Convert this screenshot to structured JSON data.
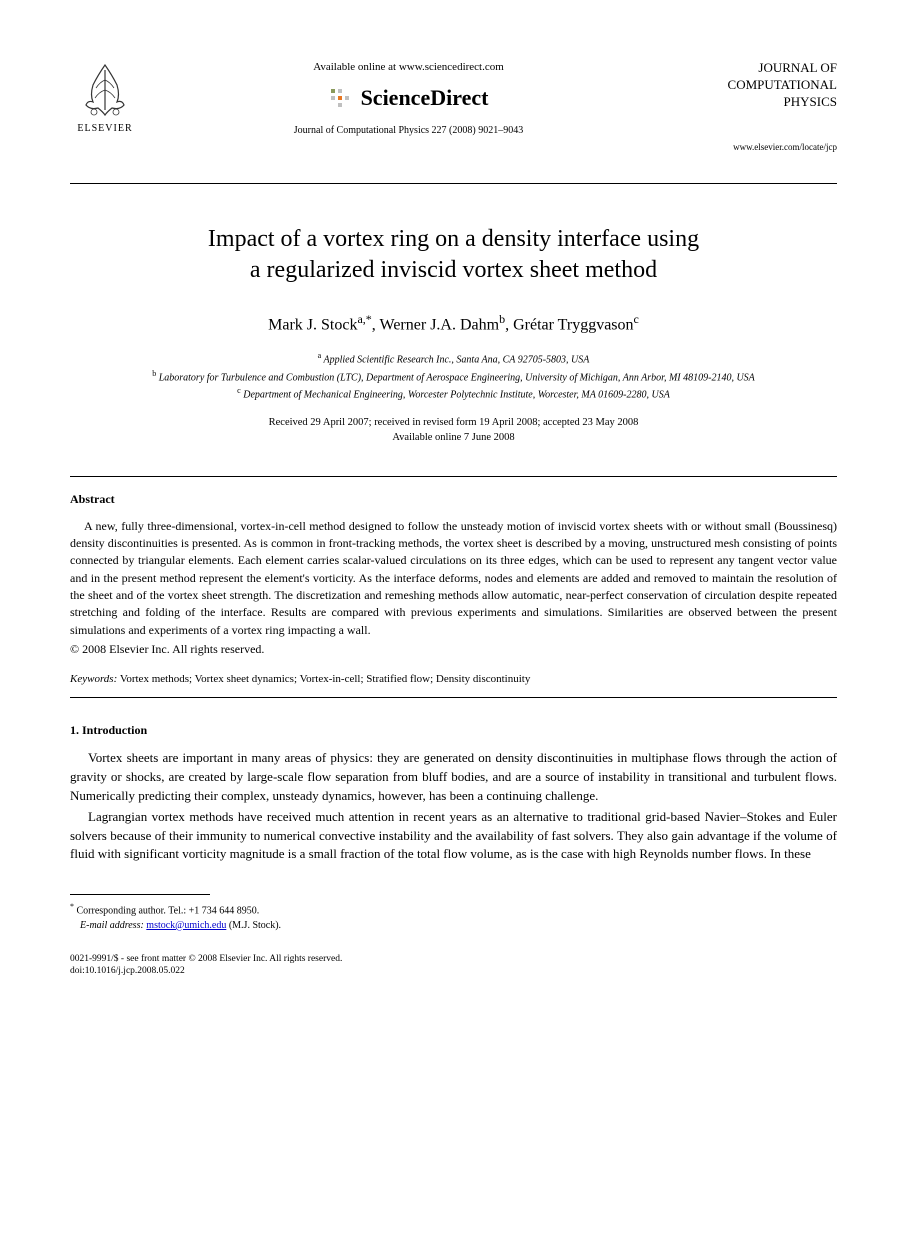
{
  "header": {
    "elsevier_label": "ELSEVIER",
    "available_online": "Available online at www.sciencedirect.com",
    "sciencedirect": "ScienceDirect",
    "journal_reference": "Journal of Computational Physics 227 (2008) 9021–9043",
    "journal_name_line1": "JOURNAL OF",
    "journal_name_line2": "COMPUTATIONAL",
    "journal_name_line3": "PHYSICS",
    "journal_url": "www.elsevier.com/locate/jcp"
  },
  "title_line1": "Impact of a vortex ring on a density interface using",
  "title_line2": "a regularized inviscid vortex sheet method",
  "authors_html": "Mark J. Stock<sup>a,*</sup>, Werner J.A. Dahm<sup>b</sup>, Grétar Tryggvason<sup>c</sup>",
  "affiliations": {
    "a": "Applied Scientific Research Inc., Santa Ana, CA 92705-5803, USA",
    "b": "Laboratory for Turbulence and Combustion (LTC), Department of Aerospace Engineering, University of Michigan, Ann Arbor, MI 48109-2140, USA",
    "c": "Department of Mechanical Engineering, Worcester Polytechnic Institute, Worcester, MA 01609-2280, USA"
  },
  "dates_line1": "Received 29 April 2007; received in revised form 19 April 2008; accepted 23 May 2008",
  "dates_line2": "Available online 7 June 2008",
  "abstract_heading": "Abstract",
  "abstract_text": "A new, fully three-dimensional, vortex-in-cell method designed to follow the unsteady motion of inviscid vortex sheets with or without small (Boussinesq) density discontinuities is presented. As is common in front-tracking methods, the vortex sheet is described by a moving, unstructured mesh consisting of points connected by triangular elements. Each element carries scalar-valued circulations on its three edges, which can be used to represent any tangent vector value and in the present method represent the element's vorticity. As the interface deforms, nodes and elements are added and removed to maintain the resolution of the sheet and of the vortex sheet strength. The discretization and remeshing methods allow automatic, near-perfect conservation of circulation despite repeated stretching and folding of the interface. Results are compared with previous experiments and simulations. Similarities are observed between the present simulations and experiments of a vortex ring impacting a wall.",
  "copyright": "© 2008 Elsevier Inc. All rights reserved.",
  "keywords_label": "Keywords:",
  "keywords_text": " Vortex methods; Vortex sheet dynamics; Vortex-in-cell; Stratified flow; Density discontinuity",
  "intro_heading": "1. Introduction",
  "intro_para1": "Vortex sheets are important in many areas of physics: they are generated on density discontinuities in multiphase flows through the action of gravity or shocks, are created by large-scale flow separation from bluff bodies, and are a source of instability in transitional and turbulent flows. Numerically predicting their complex, unsteady dynamics, however, has been a continuing challenge.",
  "intro_para2": "Lagrangian vortex methods have received much attention in recent years as an alternative to traditional grid-based Navier–Stokes and Euler solvers because of their immunity to numerical convective instability and the availability of fast solvers. They also gain advantage if the volume of fluid with significant vorticity magnitude is a small fraction of the total flow volume, as is the case with high Reynolds number flows. In these",
  "footnote": {
    "corresponding": "Corresponding author. Tel.: +1 734 644 8950.",
    "email_label": "E-mail address:",
    "email": "mstock@umich.edu",
    "email_attribution": " (M.J. Stock)."
  },
  "footer": {
    "line1": "0021-9991/$ - see front matter © 2008 Elsevier Inc. All rights reserved.",
    "line2": "doi:10.1016/j.jcp.2008.05.022"
  },
  "colors": {
    "text": "#000000",
    "background": "#ffffff",
    "link": "#0000cc",
    "elsevier_orange": "#e87722"
  }
}
